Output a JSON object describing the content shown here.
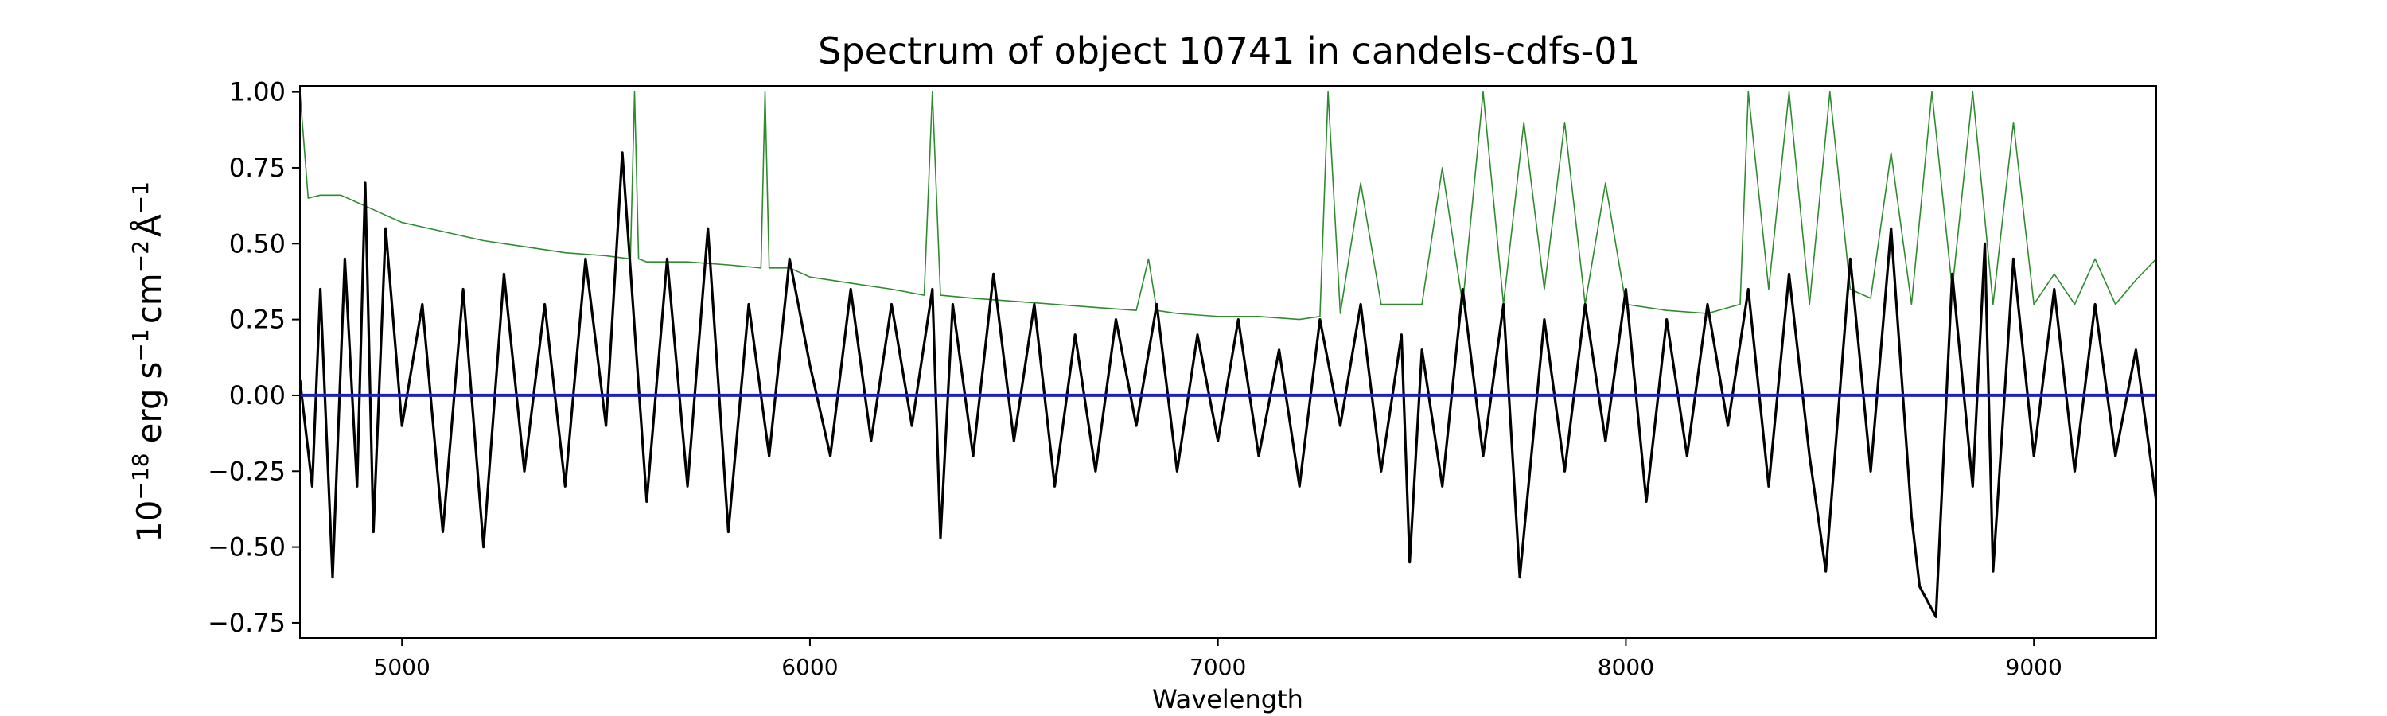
{
  "chart_data": {
    "type": "line",
    "title": "Spectrum of object 10741 in candels-cdfs-01",
    "xlabel": "Wavelength",
    "ylabel_parts": {
      "base": "10",
      "exp": "−18",
      "units": [
        "erg",
        "s",
        "−1",
        "cm",
        "−2",
        "Å",
        "−1"
      ]
    },
    "xlim": [
      4750,
      9300
    ],
    "ylim": [
      -0.8,
      1.02
    ],
    "x_ticks": [
      5000,
      6000,
      7000,
      8000,
      9000
    ],
    "x_tick_labels": [
      "5000",
      "6000",
      "7000",
      "8000",
      "9000"
    ],
    "y_ticks": [
      -0.75,
      -0.5,
      -0.25,
      0.0,
      0.25,
      0.5,
      0.75,
      1.0
    ],
    "y_tick_labels": [
      "−0.75",
      "−0.50",
      "−0.25",
      "0.00",
      "0.25",
      "0.50",
      "0.75",
      "1.00"
    ],
    "grid": false,
    "legend": "none",
    "colors": {
      "flux": "#000000",
      "error": "#2e8b2e",
      "zero": "#1f1fbf",
      "axes": "#000000"
    },
    "series": [
      {
        "role": "flux",
        "style": "thick black noisy line",
        "x": [
          4750,
          4780,
          4800,
          4830,
          4860,
          4890,
          4910,
          4930,
          4960,
          5000,
          5050,
          5100,
          5150,
          5200,
          5250,
          5300,
          5350,
          5400,
          5450,
          5500,
          5540,
          5600,
          5650,
          5700,
          5750,
          5800,
          5850,
          5900,
          5950,
          6000,
          6050,
          6100,
          6150,
          6200,
          6250,
          6300,
          6320,
          6350,
          6400,
          6450,
          6500,
          6550,
          6600,
          6650,
          6700,
          6750,
          6800,
          6850,
          6900,
          6950,
          7000,
          7050,
          7100,
          7150,
          7200,
          7250,
          7300,
          7350,
          7400,
          7450,
          7470,
          7500,
          7550,
          7600,
          7650,
          7700,
          7740,
          7800,
          7850,
          7900,
          7950,
          8000,
          8050,
          8100,
          8150,
          8200,
          8250,
          8300,
          8350,
          8400,
          8450,
          8490,
          8550,
          8600,
          8650,
          8700,
          8720,
          8760,
          8800,
          8850,
          8880,
          8900,
          8950,
          9000,
          9050,
          9100,
          9150,
          9200,
          9250,
          9300
        ],
        "y": [
          0.05,
          -0.3,
          0.35,
          -0.6,
          0.45,
          -0.3,
          0.7,
          -0.45,
          0.55,
          -0.1,
          0.3,
          -0.45,
          0.35,
          -0.5,
          0.4,
          -0.25,
          0.3,
          -0.3,
          0.45,
          -0.1,
          0.8,
          -0.35,
          0.45,
          -0.3,
          0.55,
          -0.45,
          0.3,
          -0.2,
          0.45,
          0.1,
          -0.2,
          0.35,
          -0.15,
          0.3,
          -0.1,
          0.35,
          -0.47,
          0.3,
          -0.2,
          0.4,
          -0.15,
          0.3,
          -0.3,
          0.2,
          -0.25,
          0.25,
          -0.1,
          0.3,
          -0.25,
          0.2,
          -0.15,
          0.25,
          -0.2,
          0.15,
          -0.3,
          0.25,
          -0.1,
          0.3,
          -0.25,
          0.2,
          -0.55,
          0.15,
          -0.3,
          0.35,
          -0.2,
          0.3,
          -0.6,
          0.25,
          -0.25,
          0.3,
          -0.15,
          0.35,
          -0.35,
          0.25,
          -0.2,
          0.3,
          -0.1,
          0.35,
          -0.3,
          0.4,
          -0.2,
          -0.58,
          0.45,
          -0.25,
          0.55,
          -0.4,
          -0.63,
          -0.73,
          0.4,
          -0.3,
          0.5,
          -0.58,
          0.45,
          -0.2,
          0.35,
          -0.25,
          0.3,
          -0.2,
          0.15,
          -0.35
        ]
      },
      {
        "role": "error",
        "style": "thin green line",
        "x": [
          4750,
          4770,
          4800,
          4850,
          4900,
          4950,
          5000,
          5100,
          5200,
          5300,
          5400,
          5500,
          5560,
          5570,
          5580,
          5600,
          5700,
          5800,
          5880,
          5890,
          5900,
          5950,
          6000,
          6100,
          6200,
          6280,
          6300,
          6320,
          6400,
          6500,
          6600,
          6700,
          6800,
          6830,
          6850,
          6900,
          7000,
          7100,
          7200,
          7250,
          7270,
          7300,
          7350,
          7400,
          7500,
          7550,
          7600,
          7650,
          7700,
          7750,
          7800,
          7850,
          7900,
          7950,
          8000,
          8100,
          8200,
          8280,
          8300,
          8350,
          8400,
          8450,
          8500,
          8550,
          8600,
          8650,
          8700,
          8750,
          8800,
          8850,
          8900,
          8950,
          9000,
          9050,
          9100,
          9150,
          9200,
          9250,
          9300
        ],
        "y": [
          1.0,
          0.65,
          0.66,
          0.66,
          0.63,
          0.6,
          0.57,
          0.54,
          0.51,
          0.49,
          0.47,
          0.46,
          0.45,
          1.0,
          0.45,
          0.44,
          0.44,
          0.43,
          0.42,
          1.0,
          0.42,
          0.42,
          0.39,
          0.37,
          0.35,
          0.33,
          1.0,
          0.33,
          0.32,
          0.31,
          0.3,
          0.29,
          0.28,
          0.45,
          0.28,
          0.27,
          0.26,
          0.26,
          0.25,
          0.26,
          1.0,
          0.27,
          0.7,
          0.3,
          0.3,
          0.75,
          0.3,
          1.0,
          0.3,
          0.9,
          0.35,
          0.9,
          0.3,
          0.7,
          0.3,
          0.28,
          0.27,
          0.3,
          1.0,
          0.35,
          1.0,
          0.3,
          1.0,
          0.35,
          0.32,
          0.8,
          0.3,
          1.0,
          0.35,
          1.0,
          0.3,
          0.9,
          0.3,
          0.4,
          0.3,
          0.45,
          0.3,
          0.38,
          0.45
        ]
      },
      {
        "role": "zero",
        "style": "blue horizontal line",
        "x": [
          4750,
          9300
        ],
        "y": [
          0.0,
          0.0
        ]
      }
    ]
  }
}
